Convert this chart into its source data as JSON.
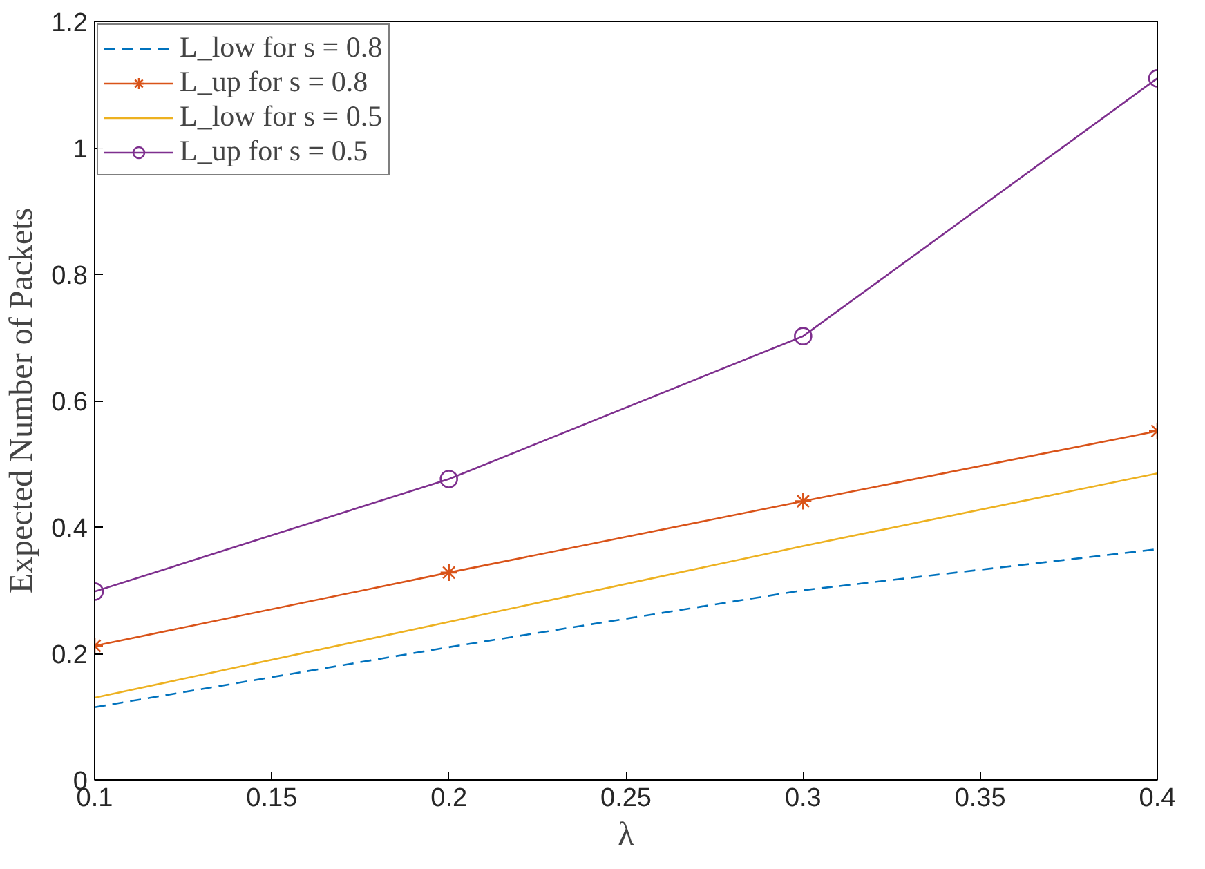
{
  "chart_data": {
    "type": "line",
    "xlabel": "λ",
    "ylabel": "Expected Number of Packets",
    "x": [
      0.1,
      0.2,
      0.3,
      0.4
    ],
    "xlim": [
      0.1,
      0.4
    ],
    "xticks": [
      0.1,
      0.15,
      0.2,
      0.25,
      0.3,
      0.35,
      0.4
    ],
    "ylim": [
      0,
      1.2
    ],
    "yticks": [
      0,
      0.2,
      0.4,
      0.6,
      0.8,
      1,
      1.2
    ],
    "grid": false,
    "legend": "top left",
    "series": [
      {
        "name": "L_low for s = 0.8",
        "color": "#0072bd",
        "values": [
          0.115,
          0.21,
          0.3,
          0.365
        ],
        "line_style": "dashed",
        "marker": "none"
      },
      {
        "name": "L_up for s = 0.8",
        "color": "#d95319",
        "values": [
          0.212,
          0.328,
          0.441,
          0.552
        ],
        "line_style": "solid",
        "marker": "cross"
      },
      {
        "name": "L_low for s = 0.5",
        "color": "#edb120",
        "values": [
          0.13,
          0.25,
          0.37,
          0.485
        ],
        "line_style": "solid",
        "marker": "none"
      },
      {
        "name": "L_up for s = 0.5",
        "color": "#7e2f8e",
        "values": [
          0.298,
          0.476,
          0.702,
          1.11
        ],
        "line_style": "solid",
        "marker": "circle"
      }
    ]
  }
}
